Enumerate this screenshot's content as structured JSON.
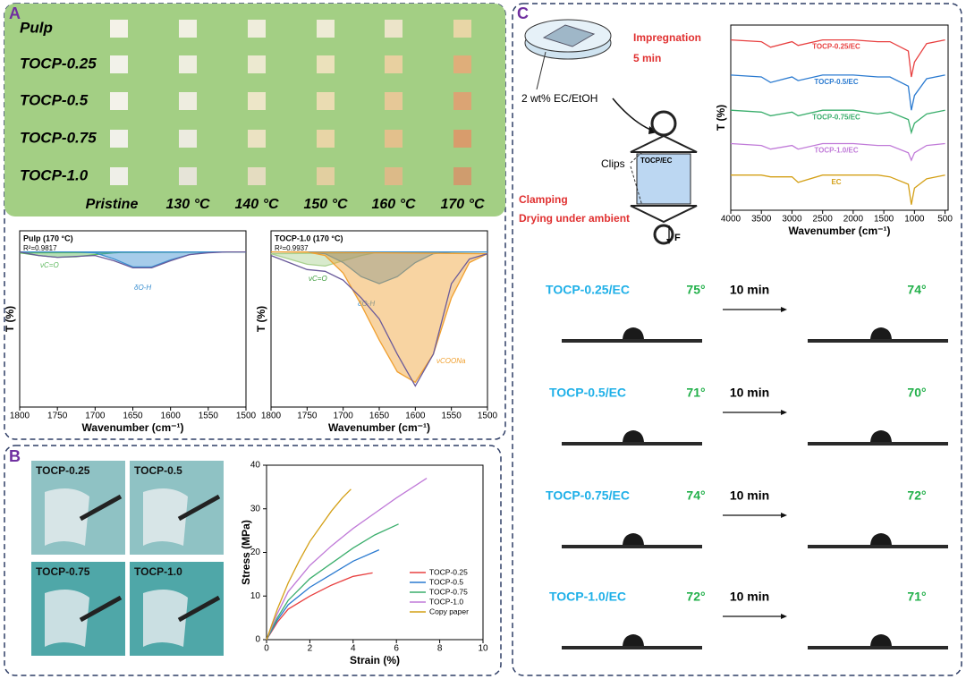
{
  "panel_labels": [
    "A",
    "B",
    "C"
  ],
  "panel_a": {
    "rows": [
      "Pulp",
      "TOCP-0.25",
      "TOCP-0.5",
      "TOCP-0.75",
      "TOCP-1.0"
    ],
    "columns": [
      "Pristine",
      "130 °C",
      "140 °C",
      "150 °C",
      "160 °C",
      "170 °C"
    ],
    "swatch_colors": [
      [
        "#f4f2e8",
        "#f1f0e3",
        "#efeddc",
        "#eeebd6",
        "#ece4c9",
        "#e8d6a6"
      ],
      [
        "#f2f2ea",
        "#eeeee0",
        "#ece9d0",
        "#ebe1bb",
        "#e8d0a0",
        "#dfae7a"
      ],
      [
        "#f3f2ea",
        "#eeede0",
        "#ede6c8",
        "#eadcb2",
        "#e6c897",
        "#dba474"
      ],
      [
        "#f1f1ea",
        "#ecebe0",
        "#ebe2c2",
        "#e8d5a6",
        "#e3c08c",
        "#d89c6c"
      ],
      [
        "#efefe8",
        "#e6e4d8",
        "#e4dcc0",
        "#e2cfa0",
        "#dcba88",
        "#cf9c6e"
      ]
    ]
  },
  "panel_b": {
    "photo_labels": [
      "TOCP-0.25",
      "TOCP-0.5",
      "TOCP-0.75",
      "TOCP-1.0"
    ]
  },
  "panel_c": {
    "impregnation": "Impregnation",
    "time": "5 min",
    "solution": "2 wt% EC/EtOH",
    "clips": "Clips",
    "film": "TOCP/EC",
    "clamping": "Clamping",
    "drying": "Drying under ambient",
    "force": "F",
    "contact_angles": [
      [
        "TOCP-0.25/EC",
        "75°",
        "10 min",
        "74°"
      ],
      [
        "TOCP-0.5/EC",
        "71°",
        "10 min",
        "70°"
      ],
      [
        "TOCP-0.75/EC",
        "74°",
        "10 min",
        "72°"
      ],
      [
        "TOCP-1.0/EC",
        "72°",
        "10 min",
        "71°"
      ]
    ]
  },
  "chart_data": [
    {
      "type": "line",
      "title": "Pulp (170 °C)",
      "annotation": "R²=0.9817",
      "xlabel": "Wavenumber (cm⁻¹)",
      "ylabel": "T (%)",
      "xlim": [
        1800,
        1500
      ],
      "ylim": [
        0,
        100
      ],
      "xticks": [
        1800,
        1750,
        1700,
        1650,
        1600,
        1550,
        1500
      ],
      "x": [
        1800,
        1775,
        1750,
        1725,
        1700,
        1675,
        1650,
        1625,
        1600,
        1575,
        1550,
        1525,
        1500
      ],
      "series": [
        {
          "name": "νC=O",
          "color": "#5cb85c",
          "fill": true,
          "values": [
            87.5,
            86,
            85,
            85.3,
            86.5,
            87.5,
            88,
            88,
            88,
            88,
            88,
            88,
            88
          ]
        },
        {
          "name": "δO-H",
          "color": "#3a8fd0",
          "fill": true,
          "values": [
            88,
            88,
            88,
            88,
            87.5,
            84,
            79.5,
            79.5,
            83.5,
            86.5,
            87.8,
            88,
            88
          ]
        },
        {
          "color": "#6a5a9a",
          "values": [
            88,
            86,
            85,
            85.5,
            86,
            83,
            79,
            79,
            83,
            86.5,
            87.5,
            88,
            88
          ]
        }
      ]
    },
    {
      "type": "line",
      "title": "TOCP-1.0 (170 °C)",
      "annotation": "R²=0.9937",
      "xlabel": "Wavenumber (cm⁻¹)",
      "ylabel": "T (%)",
      "xlim": [
        1800,
        1500
      ],
      "ylim": [
        0,
        100
      ],
      "xticks": [
        1800,
        1750,
        1700,
        1650,
        1600,
        1550,
        1500
      ],
      "x": [
        1800,
        1775,
        1750,
        1725,
        1700,
        1675,
        1650,
        1625,
        1600,
        1575,
        1550,
        1525,
        1500
      ],
      "series": [
        {
          "name": "νC=O",
          "color": "#a9d18e",
          "fill": true,
          "values": [
            87,
            84,
            81,
            80,
            83,
            86,
            88,
            88,
            88,
            88,
            88,
            88,
            88
          ]
        },
        {
          "name": "δO-H",
          "color": "#3a8fd0",
          "fill": true,
          "values": [
            88,
            88,
            88,
            87,
            82,
            74,
            70,
            74,
            82,
            87,
            88,
            88,
            88
          ]
        },
        {
          "name": "νCOONa",
          "color": "#f0a030",
          "fill": true,
          "values": [
            88,
            88,
            88,
            86,
            76,
            58,
            38,
            20,
            14,
            30,
            62,
            82,
            87
          ]
        },
        {
          "color": "#6a5a9a",
          "values": [
            86,
            82,
            78,
            77,
            72,
            62,
            50,
            30,
            12,
            30,
            70,
            84,
            87
          ]
        }
      ]
    },
    {
      "type": "line",
      "xlabel": "Wavenumber (cm⁻¹)",
      "ylabel": "T (%)",
      "xlim": [
        4000,
        450
      ],
      "ylim": [
        0,
        100
      ],
      "xticks": [
        4000,
        3500,
        3000,
        2500,
        2000,
        1500,
        1000,
        500
      ],
      "x": [
        4000,
        3500,
        3350,
        3000,
        2900,
        2500,
        2000,
        1600,
        1400,
        1100,
        1050,
        1000,
        800,
        500
      ],
      "series": [
        {
          "name": "TOCP-0.25/EC",
          "color": "#e84040",
          "values": [
            92,
            91,
            88,
            91,
            89,
            92,
            92,
            91,
            91,
            86,
            72,
            80,
            90,
            92
          ]
        },
        {
          "name": "TOCP-0.5/EC",
          "color": "#2a7ad0",
          "values": [
            73,
            72,
            69,
            72,
            70,
            73,
            73,
            72,
            72,
            67,
            54,
            62,
            71,
            73
          ]
        },
        {
          "name": "TOCP-0.75/EC",
          "color": "#3aae6c",
          "values": [
            54,
            53,
            51,
            53,
            51,
            54,
            54,
            52,
            53,
            49,
            42,
            47,
            52,
            54
          ]
        },
        {
          "name": "TOCP-1.0/EC",
          "color": "#c07ad8",
          "values": [
            36,
            35,
            33,
            35,
            33,
            36,
            36,
            35,
            35,
            31,
            27,
            31,
            35,
            36
          ]
        },
        {
          "name": "EC",
          "color": "#d4a017",
          "values": [
            19,
            19,
            18,
            18,
            15,
            19,
            19,
            19,
            18,
            14,
            3,
            12,
            17,
            19
          ]
        }
      ]
    },
    {
      "type": "line",
      "xlabel": "Strain (%)",
      "ylabel": "Stress (MPa)",
      "xlim": [
        0,
        10
      ],
      "ylim": [
        0,
        40
      ],
      "xticks": [
        0,
        2,
        4,
        6,
        8,
        10
      ],
      "yticks": [
        0,
        10,
        20,
        30,
        40
      ],
      "legend": "lower right",
      "series": [
        {
          "name": "TOCP-0.25",
          "color": "#e84040",
          "x": [
            0,
            0.5,
            1,
            2,
            3,
            4,
            4.9
          ],
          "values": [
            0,
            4,
            7,
            10,
            12.5,
            14.5,
            15.3
          ]
        },
        {
          "name": "TOCP-0.5",
          "color": "#2a7ad0",
          "x": [
            0,
            0.5,
            1,
            2,
            3,
            4,
            5.2
          ],
          "values": [
            0,
            4.5,
            8,
            12,
            15,
            18,
            20.6
          ]
        },
        {
          "name": "TOCP-0.75",
          "color": "#3aae6c",
          "x": [
            0,
            0.5,
            1,
            2,
            3,
            4,
            5,
            6.1
          ],
          "values": [
            0,
            5,
            9,
            14,
            17.5,
            21,
            24,
            26.5
          ]
        },
        {
          "name": "TOCP-1.0",
          "color": "#c07ad8",
          "x": [
            0,
            0.5,
            1,
            2,
            3,
            4,
            5,
            6,
            7.4
          ],
          "values": [
            0,
            6,
            11,
            17,
            21.5,
            25.5,
            29,
            32.5,
            37
          ]
        },
        {
          "name": "Copy paper",
          "color": "#d4a017",
          "x": [
            0,
            0.5,
            1,
            1.5,
            2,
            2.5,
            3,
            3.5,
            3.9
          ],
          "values": [
            0,
            7,
            13,
            18,
            22.5,
            26,
            29.5,
            32.5,
            34.5
          ]
        }
      ]
    }
  ]
}
